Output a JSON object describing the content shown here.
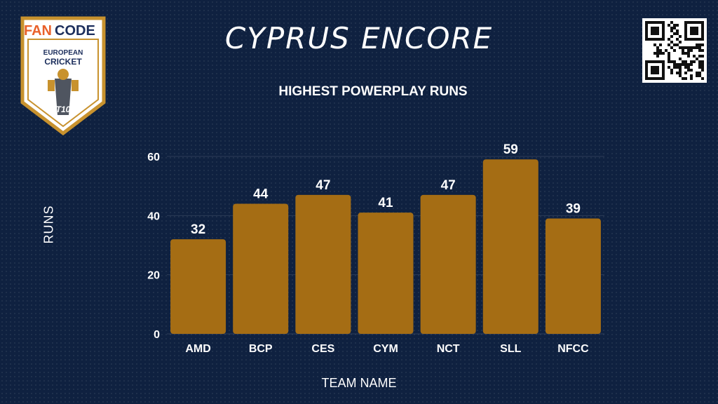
{
  "brand": {
    "fancode_fan": "FAN",
    "fancode_code": "CODE",
    "line1": "EUROPEAN",
    "line2": "CRICKET",
    "badge": "T10"
  },
  "header": {
    "title": "CYPRUS ENCORE",
    "subtitle": "HIGHEST POWERPLAY RUNS"
  },
  "colors": {
    "background": "#0f2140",
    "bar": "#a56d14",
    "accent_orange": "#e9612a",
    "logo_gold": "#c8922e"
  },
  "chart_data": {
    "type": "bar",
    "title": "HIGHEST POWERPLAY RUNS",
    "xlabel": "TEAM NAME",
    "ylabel": "RUNS",
    "categories": [
      "AMD",
      "BCP",
      "CES",
      "CYM",
      "NCT",
      "SLL",
      "NFCC"
    ],
    "values": [
      32,
      44,
      47,
      41,
      47,
      59,
      39
    ],
    "ylim": [
      0,
      60
    ],
    "yticks": [
      0,
      20,
      40,
      60
    ],
    "grid": true,
    "data_labels": true
  }
}
